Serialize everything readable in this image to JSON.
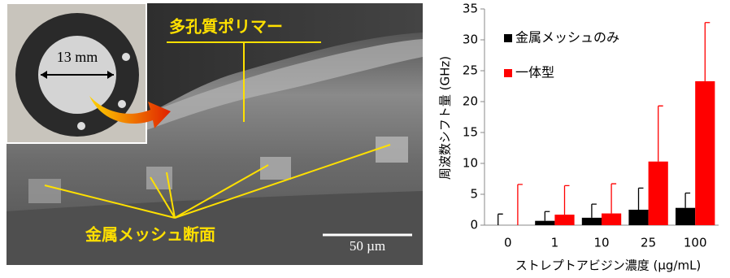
{
  "photo": {
    "polymer_label": "多孔質ポリマー",
    "mesh_label": "金属メッシュ断面",
    "ring_size": "13 mm",
    "scale_bar": "50 µm"
  },
  "chart_data": {
    "type": "bar",
    "ylabel": "周波数シフト量 (GHz)",
    "xlabel": "ストレプトアビジン濃度 (µg/mL)",
    "categories": [
      "0",
      "1",
      "10",
      "25",
      "100"
    ],
    "series": [
      {
        "name": "金属メッシュのみ",
        "color": "#000000",
        "values": [
          0,
          0.7,
          1.2,
          2.5,
          2.8
        ],
        "errors": [
          1.8,
          1.5,
          2.2,
          3.5,
          2.4
        ]
      },
      {
        "name": "一体型",
        "color": "#ff0000",
        "values": [
          0,
          1.7,
          1.9,
          10.3,
          23.3
        ],
        "errors": [
          6.6,
          4.7,
          4.8,
          9.0,
          9.5
        ]
      }
    ],
    "ylim": [
      0,
      35
    ],
    "yticks": [
      0,
      5,
      10,
      15,
      20,
      25,
      30,
      35
    ],
    "legend": "upper-left"
  }
}
